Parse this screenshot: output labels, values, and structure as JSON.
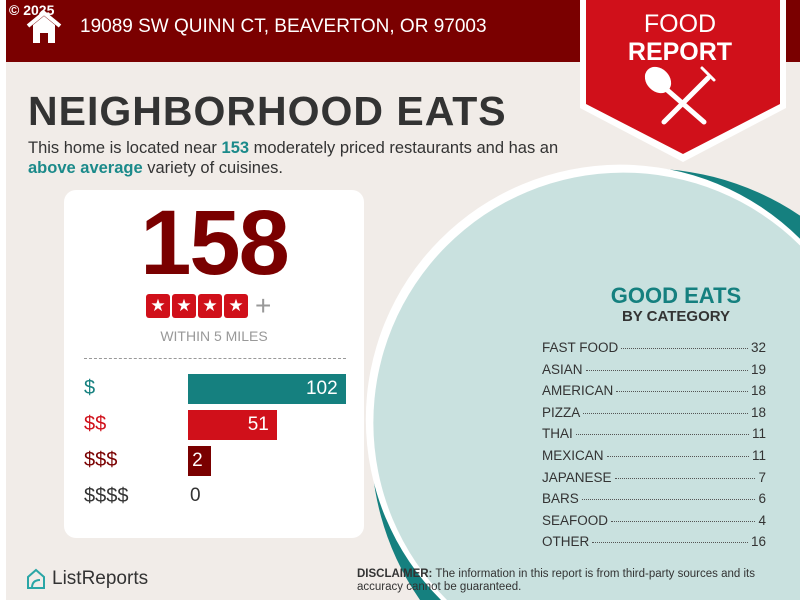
{
  "header": {
    "copyright": "© 2025",
    "address": "19089 SW QUINN CT, BEAVERTON, OR 97003"
  },
  "badge": {
    "line1": "FOOD",
    "line2": "REPORT",
    "icon": "spoon-fork-icon"
  },
  "title": "NEIGHBORHOOD EATS",
  "intro": {
    "t1": "This home is located near ",
    "count": "153",
    "t2": " moderately priced restaurants and has an ",
    "variety": "above average",
    "t3": " variety of cuisines."
  },
  "summary": {
    "total": "158",
    "rating_stars": 4,
    "rating_plus": "+",
    "within": "WITHIN 5 MILES"
  },
  "price_levels": [
    {
      "label": "$",
      "value": 102,
      "color": "#15807f"
    },
    {
      "label": "$$",
      "value": 51,
      "color": "#d0101a"
    },
    {
      "label": "$$$",
      "value": 2,
      "color": "#7a0000"
    },
    {
      "label": "$$$$",
      "value": 0,
      "color": "#333333"
    }
  ],
  "good_eats": {
    "title": "GOOD EATS",
    "subtitle": "BY CATEGORY",
    "categories": [
      {
        "name": "FAST FOOD",
        "count": "32"
      },
      {
        "name": "ASIAN",
        "count": "19"
      },
      {
        "name": "AMERICAN",
        "count": "18"
      },
      {
        "name": "PIZZA",
        "count": "18"
      },
      {
        "name": "THAI",
        "count": "11"
      },
      {
        "name": "MEXICAN",
        "count": "11"
      },
      {
        "name": "JAPANESE",
        "count": "7"
      },
      {
        "name": "BARS",
        "count": "6"
      },
      {
        "name": "SEAFOOD",
        "count": "4"
      },
      {
        "name": "OTHER",
        "count": "16"
      }
    ]
  },
  "footer": {
    "logo": "ListReports",
    "disclaimer_label": "DISCLAIMER:",
    "disclaimer": " The information in this report is from third-party sources and its accuracy cannot be guaranteed."
  },
  "colors": {
    "dark_red": "#7a0000",
    "red": "#d0101a",
    "teal": "#15807f",
    "light_teal": "#c9e1df",
    "bg": "#f1ece8"
  }
}
